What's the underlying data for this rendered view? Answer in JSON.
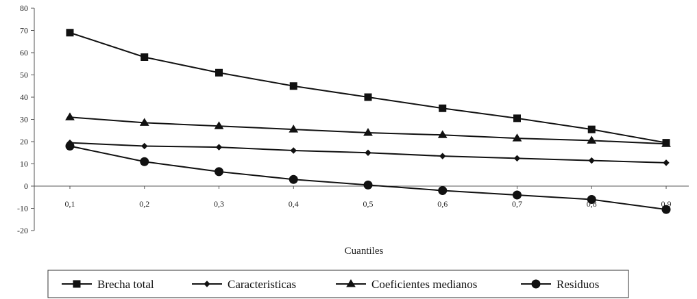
{
  "chart_data": {
    "type": "line",
    "xlabel": "Cuantiles",
    "ylabel": "",
    "title": "",
    "x": [
      "0,1",
      "0,2",
      "0,3",
      "0,4",
      "0,5",
      "0,6",
      "0,7",
      "0,8",
      "0,9"
    ],
    "yticks": [
      "80",
      "70",
      "60",
      "50",
      "40",
      "30",
      "20",
      "10",
      "0",
      "-10",
      "-20"
    ],
    "ylim": [
      -20,
      80
    ],
    "grid": false,
    "legend_position": "bottom",
    "series": [
      {
        "name": "Brecha total",
        "marker": "square",
        "values": [
          69,
          58,
          51,
          45,
          40,
          35,
          30.5,
          25.5,
          19.5
        ]
      },
      {
        "name": "Caracteristicas",
        "marker": "diamond",
        "values": [
          19.5,
          18,
          17.5,
          16,
          15,
          13.5,
          12.5,
          11.5,
          10.5
        ]
      },
      {
        "name": "Coeficientes medianos",
        "marker": "triangle",
        "values": [
          31,
          28.5,
          27,
          25.5,
          24,
          23,
          21.5,
          20.5,
          19
        ]
      },
      {
        "name": "Residuos",
        "marker": "circle",
        "values": [
          18,
          11,
          6.5,
          3,
          0.5,
          -2,
          -4,
          -6,
          -10.5
        ]
      }
    ]
  }
}
